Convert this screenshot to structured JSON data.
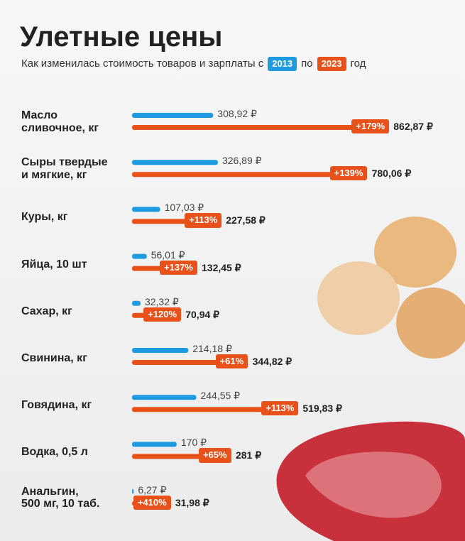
{
  "chart_data": {
    "type": "paired-bar",
    "title": "Улетные цены",
    "subtitle": [
      "Как изменилась стоимость товаров и зарплаты с",
      "по",
      "год"
    ],
    "categories": [
      "Масло\nсливочное, кг",
      "Сыры твердые\nи мягкие, кг",
      "Куры, кг",
      "Яйца, 10 шт",
      "Сахар, кг",
      "Свинина, кг",
      "Говядина, кг",
      "Водка, 0,5 л",
      "Анальгин,\n500 мг, 10 таб."
    ],
    "series": [
      {
        "name": "2013",
        "color": "#1e9be0",
        "values": [
          308.92,
          326.89,
          107.03,
          56.01,
          32.32,
          214.18,
          244.55,
          170,
          6.27
        ],
        "value_labels": [
          "308,92 ₽",
          "326,89 ₽",
          "107,03 ₽",
          "56,01 ₽",
          "32,32 ₽",
          "214,18 ₽",
          "244,55 ₽",
          "170 ₽",
          "6,27 ₽"
        ]
      },
      {
        "name": "2023",
        "color": "#e8521a",
        "values": [
          862.87,
          780.06,
          227.58,
          132.45,
          70.94,
          344.82,
          519.83,
          281,
          31.98
        ],
        "value_labels": [
          "862,87 ₽",
          "780,06 ₽",
          "227,58 ₽",
          "132,45 ₽",
          "70,94 ₽",
          "344,82 ₽",
          "519,83 ₽",
          "281 ₽",
          "31,98 ₽"
        ]
      }
    ],
    "change_labels": [
      "+179%",
      "+139%",
      "+113%",
      "+137%",
      "+120%",
      "+61%",
      "+113%",
      "+65%",
      "+410%"
    ],
    "ylim": [
      0,
      1000
    ]
  }
}
